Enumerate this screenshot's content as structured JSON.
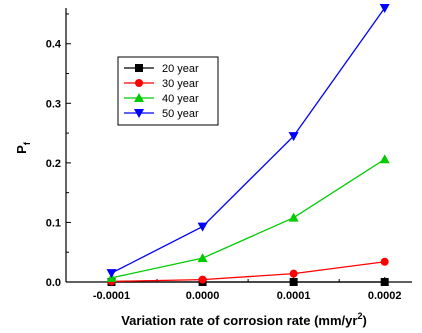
{
  "chart_data": {
    "type": "line",
    "title": "",
    "xlabel": "Variation rate of corrosion rate (mm/yr",
    "xlabel_sup": "2",
    "xlabel_close": ")",
    "ylabel": "P",
    "ylabel_sub": "f",
    "x": [
      -0.0001,
      0.0,
      0.0001,
      0.0002
    ],
    "x_tick_labels": [
      "-0.0001",
      "0.0000",
      "0.0001",
      "0.0002"
    ],
    "xlim": [
      -0.00015,
      0.00023
    ],
    "ylim": [
      0,
      0.46
    ],
    "y_ticks": [
      0.0,
      0.1,
      0.2,
      0.3,
      0.4
    ],
    "y_tick_labels": [
      "0.0",
      "0.1",
      "0.2",
      "0.3",
      "0.4"
    ],
    "legend_placement": "upper-left",
    "grid": false,
    "series": [
      {
        "name": "20 year",
        "color": "#000000",
        "marker": "square",
        "values": [
          0.0,
          0.0,
          0.0,
          0.0
        ]
      },
      {
        "name": "30 year",
        "color": "#ff0000",
        "marker": "circle",
        "values": [
          0.001,
          0.004,
          0.014,
          0.034
        ]
      },
      {
        "name": "40 year",
        "color": "#00cc00",
        "marker": "triangle-up",
        "values": [
          0.007,
          0.04,
          0.108,
          0.206
        ]
      },
      {
        "name": "50 year",
        "color": "#0000ff",
        "marker": "triangle-down",
        "values": [
          0.015,
          0.093,
          0.245,
          0.46
        ]
      }
    ]
  }
}
